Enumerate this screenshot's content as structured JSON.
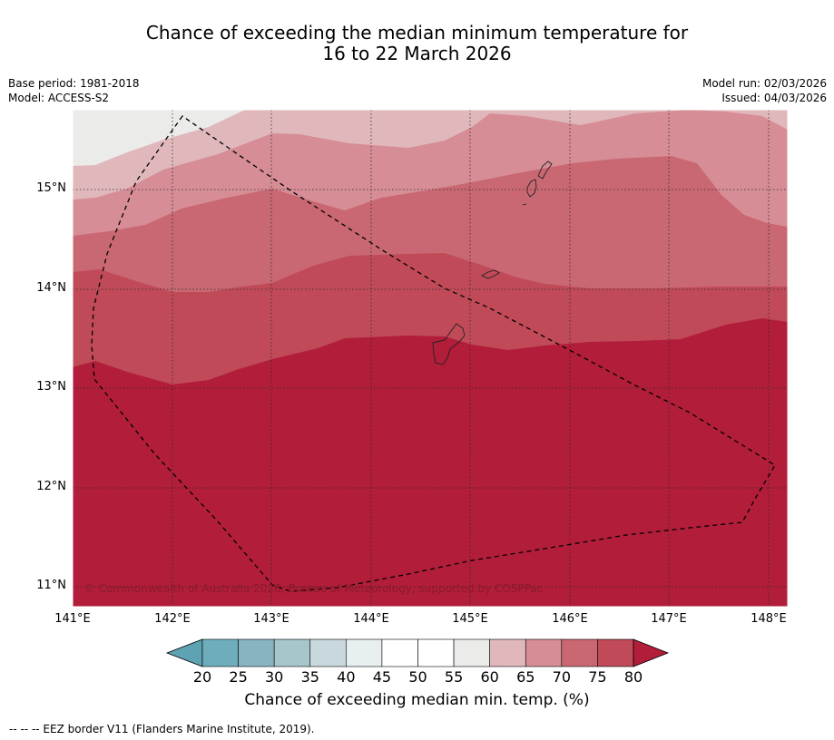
{
  "title_line1": "Chance of exceeding the median minimum temperature for",
  "title_line2": "16 to 22 March 2026",
  "base_period": "Base period: 1981-2018",
  "model": "Model: ACCESS-S2",
  "model_run": "Model run: 02/03/2026",
  "issued": "Issued: 04/03/2026",
  "copyright": "© Commonwealth of Australia 2026, Bureau of Meteorology, supported by COSPPac",
  "lat_labels": [
    "15°N",
    "14°N",
    "13°N",
    "12°N",
    "11°N"
  ],
  "lon_labels": [
    "141°E",
    "142°E",
    "143°E",
    "144°E",
    "145°E",
    "146°E",
    "147°E",
    "148°E"
  ],
  "colorbar": {
    "ticks": [
      "20",
      "25",
      "30",
      "35",
      "40",
      "45",
      "50",
      "55",
      "60",
      "65",
      "70",
      "75",
      "80"
    ],
    "colors": [
      "#5ea3b3",
      "#6eaebc",
      "#88b4c2",
      "#a7c6cb",
      "#c9d8dc",
      "#e8eff0",
      "#ffffff",
      "#ffffff",
      "#ebebea",
      "#e0b8bc",
      "#d68d96",
      "#c96872",
      "#c04a58",
      "#b21d3a"
    ],
    "label": "Chance of exceeding median min. temp. (%)"
  },
  "legend_footer": "--  --  -- EEZ border V11 (Flanders Marine Institute, 2019).",
  "map_colors": {
    "c55_60": "#ebebea",
    "c60_65": "#e0b8bc",
    "c65_70": "#d68d96",
    "c70_75": "#c96872",
    "c75_80": "#c04a58",
    "c80": "#b21d3a"
  }
}
